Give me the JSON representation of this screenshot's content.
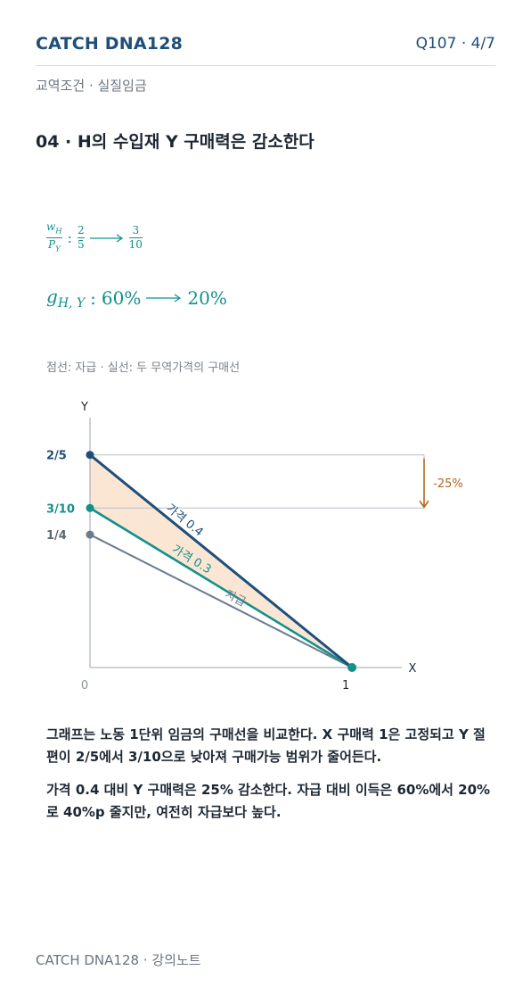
{
  "header": {
    "brand": "CATCH DNA128",
    "question": "Q107 · 4/7",
    "subtitle": "교역조건 · 실질임금"
  },
  "heading": "04 · H의 수입재 Y 구매력은 감소한다",
  "formula_1": {
    "numerator": "w",
    "numerator_sub": "H",
    "denominator": "P",
    "denominator_sub": "Y",
    "separator": ":",
    "from": {
      "num": "2",
      "den": "5"
    },
    "to": {
      "num": "3",
      "den": "10"
    }
  },
  "formula_2": {
    "symbol": "g",
    "symbol_sub": "H, Y",
    "separator": ":",
    "from": "60%",
    "to": "20%"
  },
  "caption": "점선: 자급 · 실선: 두 무역가격의 구매선",
  "graph": {
    "x_label": "X",
    "y_label": "Y",
    "xlim": [
      0,
      1.19
    ],
    "ylim": [
      0,
      0.47
    ],
    "xticks": [
      0,
      1
    ],
    "yticks": [
      {
        "value": 0.4,
        "label": "2/5"
      },
      {
        "value": 0.3,
        "label": "3/10"
      },
      {
        "value": 0.25,
        "label": "1/4"
      }
    ],
    "lines": [
      {
        "name": "가격 0.4",
        "intercept": 0.4,
        "x_end": 1,
        "color": "#1f4e79"
      },
      {
        "name": "가격 0.3",
        "intercept": 0.3,
        "x_end": 1,
        "color": "#12908a"
      },
      {
        "name": "자급",
        "intercept": 0.25,
        "x_end": 1,
        "color": "#6b7a8c"
      }
    ],
    "change_label": "-25%",
    "change_color": "#b5651d",
    "shade_color": "#fbe6d4"
  },
  "paragraphs": [
    "그래프는 노동 1단위 임금의 구매선을 비교한다. X 구매력 1은 고정되고 Y 절편이 2/5에서 3/10으로 낮아져 구매가능 범위가 줄어든다.",
    "가격 0.4 대비 Y 구매력은 25% 감소한다. 자급 대비 이득은 60%에서 20%로 40%p 줄지만, 여전히 자급보다 높다."
  ],
  "footer": "CATCH DNA128 · 강의노트"
}
